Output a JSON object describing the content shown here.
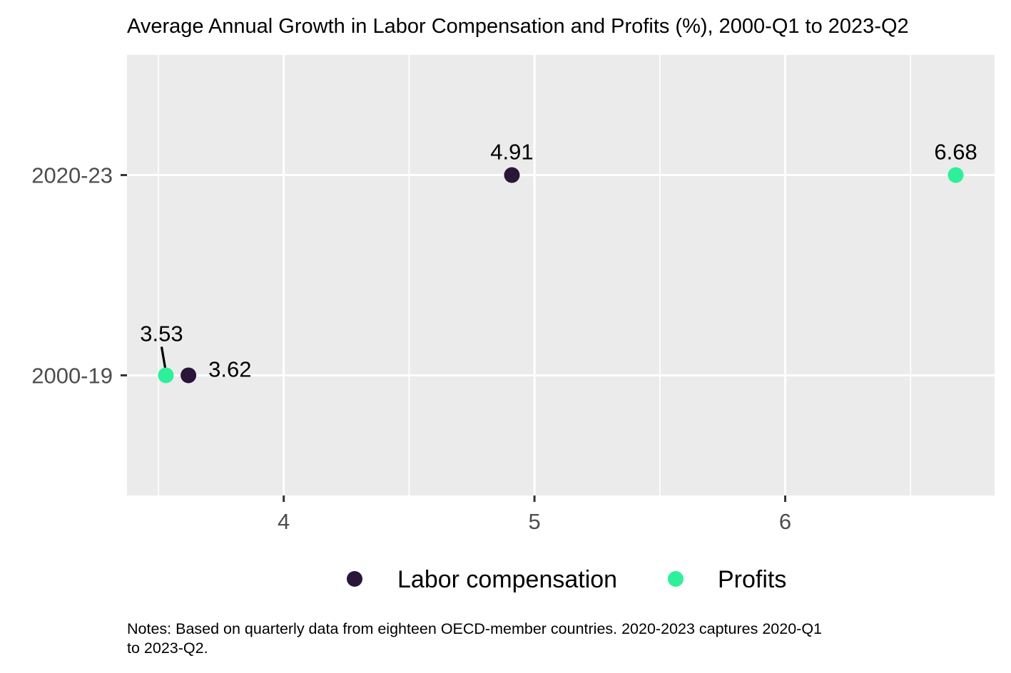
{
  "chart_data": {
    "type": "scatter",
    "title": "Average Annual Growth in Labor Compensation and Profits (%), 2000-Q1 to 2023-Q2",
    "xlabel": "",
    "ylabel": "",
    "categories": [
      "2000-19",
      "2020-23"
    ],
    "x_ticks": [
      4,
      5,
      6
    ],
    "xlim": [
      3.375,
      6.835
    ],
    "grid": true,
    "legend_position": "bottom",
    "series": [
      {
        "name": "Labor compensation",
        "color": "#2a1638",
        "points": [
          {
            "category": "2000-19",
            "value": 3.62,
            "label": "3.62"
          },
          {
            "category": "2020-23",
            "value": 4.91,
            "label": "4.91"
          }
        ]
      },
      {
        "name": "Profits",
        "color": "#2ef09a",
        "points": [
          {
            "category": "2000-19",
            "value": 3.53,
            "label": "3.53"
          },
          {
            "category": "2020-23",
            "value": 6.68,
            "label": "6.68"
          }
        ]
      }
    ],
    "notes": [
      "Notes: Based on quarterly data from eighteen OECD-member countries. 2020-2023 captures 2020-Q1",
      "to 2023-Q2."
    ]
  }
}
